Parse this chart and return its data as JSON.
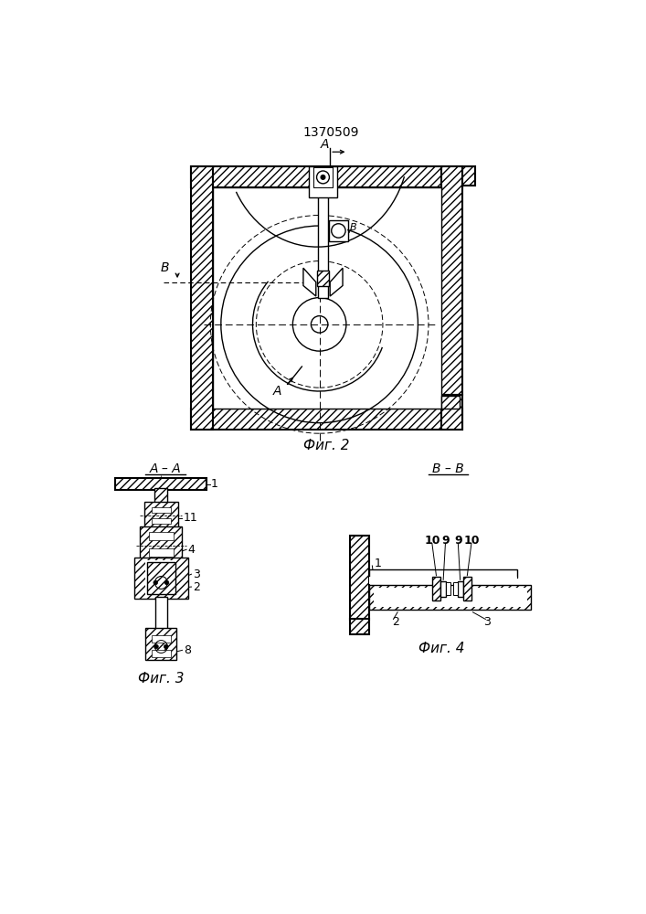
{
  "title": "1370509",
  "fig2_label": "Фиг. 2",
  "fig3_label": "Фиг. 3",
  "fig4_label": "Фиг. 4",
  "section_aa": "А – А",
  "section_bb": "В – В",
  "bg_color": "#ffffff",
  "line_color": "#000000"
}
